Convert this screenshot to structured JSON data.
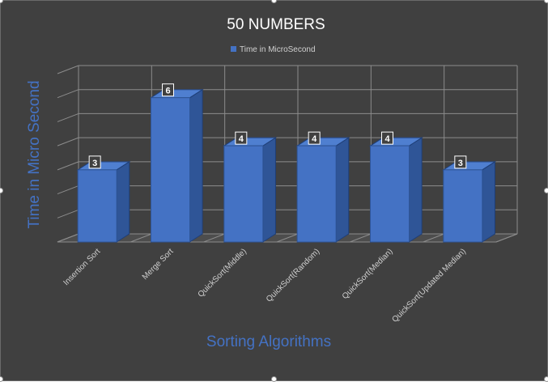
{
  "chart_data": {
    "type": "bar",
    "title": "50 NUMBERS",
    "xlabel": "Sorting Algorithms",
    "ylabel": "Time in Micro Second",
    "categories": [
      "Insertion Sort",
      "Merge Sort",
      "QuickSort(Middle)",
      "QuickSort(Random)",
      "QuickSort(Median)",
      "QuickSort(Updated Median)"
    ],
    "series": [
      {
        "name": "Time in MicroSecond",
        "values": [
          3,
          6,
          4,
          4,
          4,
          3
        ]
      }
    ],
    "ylim": [
      0,
      7
    ],
    "grid": true,
    "legend_position": "top",
    "data_labels": true,
    "three_d": true
  },
  "colors": {
    "background": "#404040",
    "bar_front": "#4472c4",
    "bar_side": "#2f5597",
    "bar_top": "#4f7fd0",
    "title_text": "#ffffff",
    "axis_title_text": "#4472c4",
    "tick_text": "#d0d0d0",
    "grid": "#8c8c8c"
  }
}
